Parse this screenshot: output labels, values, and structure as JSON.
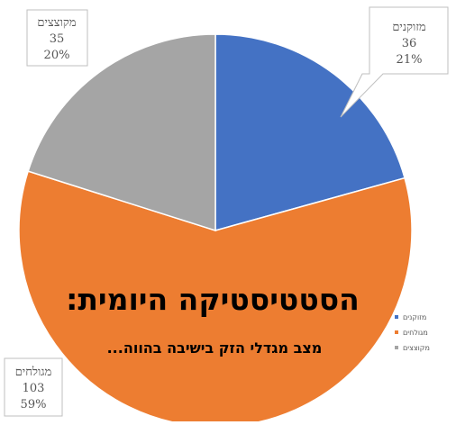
{
  "chart_data": {
    "type": "pie",
    "title": "הסטטיסטיקה היומית:",
    "subtitle": "מצב מגדלי הזק בישיבה בהווה...",
    "slices": [
      {
        "label": "מזוקנים",
        "value": 36,
        "percent": "21%",
        "color": "#4472C4"
      },
      {
        "label": "מגולחים",
        "value": 103,
        "percent": "59%",
        "color": "#ED7D31"
      },
      {
        "label": "מקוצצים",
        "value": 35,
        "percent": "20%",
        "color": "#A5A5A5"
      }
    ],
    "legend": {
      "position": "right",
      "items": [
        "מזוקנים",
        "מגולחים",
        "מקוצצים"
      ]
    }
  }
}
